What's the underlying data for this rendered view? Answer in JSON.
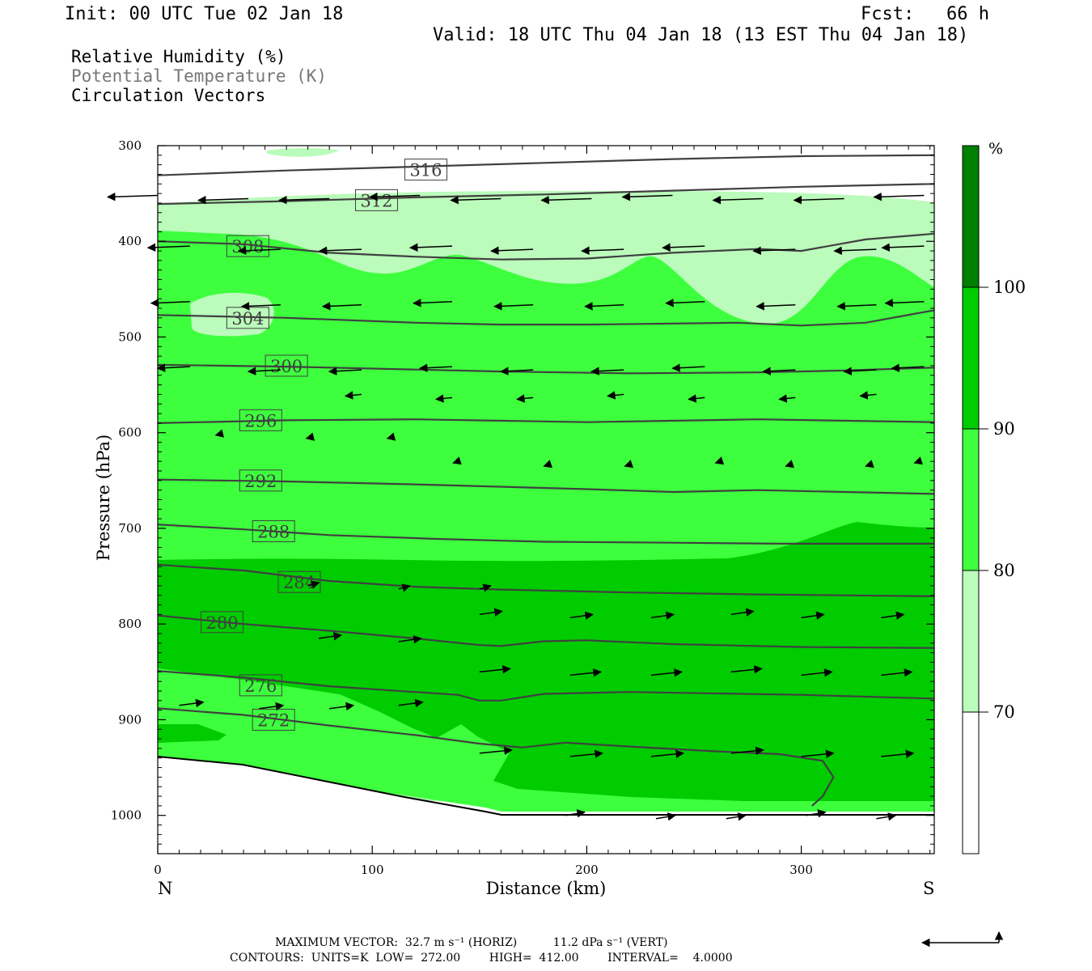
{
  "header": {
    "init": "Init: 00 UTC Tue 02 Jan 18",
    "fcst": "Fcst:   66 h",
    "valid": "Valid: 18 UTC Thu 04 Jan 18 (13 EST Thu 04 Jan 18)"
  },
  "fields": [
    {
      "label": "Relative Humidity (%)",
      "color": "#000000"
    },
    {
      "label": "Potential Temperature (K)",
      "color": "#777777"
    },
    {
      "label": "Circulation Vectors",
      "color": "#000000"
    }
  ],
  "chart_data": {
    "type": "cross-section",
    "xlabel": "Distance (km)",
    "ylabel": "Pressure (hPa)",
    "xlim": [
      0,
      362
    ],
    "ylim": [
      1040,
      300
    ],
    "x_ticks": [
      "0",
      "100",
      "200",
      "300"
    ],
    "y_ticks": [
      "300",
      "400",
      "500",
      "600",
      "700",
      "800",
      "900",
      "1000"
    ],
    "left_end_label": "N",
    "right_end_label": "S",
    "rh_colorbar": {
      "unit": "%",
      "levels": [
        "70",
        "80",
        "90",
        "100"
      ],
      "colors": [
        "#ffffff",
        "#bbfbbb",
        "#3dff3d",
        "#00cc00",
        "#008000"
      ]
    },
    "theta_contours": [
      {
        "value": 316,
        "label_at": [
          125,
          325
        ],
        "points": [
          [
            0,
            331
          ],
          [
            60,
            326
          ],
          [
            120,
            322
          ],
          [
            180,
            318
          ],
          [
            240,
            314
          ],
          [
            300,
            311
          ],
          [
            362,
            310
          ]
        ]
      },
      {
        "value": 312,
        "label_at": [
          102,
          357
        ],
        "points": [
          [
            0,
            361
          ],
          [
            60,
            358
          ],
          [
            120,
            354
          ],
          [
            180,
            351
          ],
          [
            240,
            347
          ],
          [
            300,
            343
          ],
          [
            362,
            340
          ]
        ]
      },
      {
        "value": 308,
        "label_at": [
          42,
          405
        ],
        "points": [
          [
            0,
            400
          ],
          [
            40,
            403
          ],
          [
            80,
            412
          ],
          [
            120,
            416
          ],
          [
            160,
            419
          ],
          [
            200,
            418
          ],
          [
            240,
            412
          ],
          [
            280,
            408
          ],
          [
            300,
            410
          ],
          [
            330,
            398
          ],
          [
            362,
            392
          ]
        ]
      },
      {
        "value": 304,
        "label_at": [
          42,
          480
        ],
        "points": [
          [
            0,
            477
          ],
          [
            60,
            480
          ],
          [
            120,
            485
          ],
          [
            160,
            487
          ],
          [
            200,
            487
          ],
          [
            240,
            486
          ],
          [
            270,
            485
          ],
          [
            300,
            488
          ],
          [
            330,
            485
          ],
          [
            362,
            472
          ]
        ]
      },
      {
        "value": 300,
        "label_at": [
          60,
          530
        ],
        "points": [
          [
            0,
            529
          ],
          [
            60,
            531
          ],
          [
            120,
            534
          ],
          [
            160,
            536
          ],
          [
            220,
            538
          ],
          [
            280,
            537
          ],
          [
            320,
            535
          ],
          [
            362,
            532
          ]
        ]
      },
      {
        "value": 296,
        "label_at": [
          48,
          587
        ],
        "points": [
          [
            0,
            590
          ],
          [
            60,
            587
          ],
          [
            120,
            586
          ],
          [
            200,
            589
          ],
          [
            280,
            586
          ],
          [
            362,
            589
          ]
        ]
      },
      {
        "value": 292,
        "label_at": [
          48,
          650
        ],
        "points": [
          [
            0,
            649
          ],
          [
            60,
            651
          ],
          [
            120,
            654
          ],
          [
            200,
            659
          ],
          [
            240,
            662
          ],
          [
            280,
            660
          ],
          [
            362,
            664
          ]
        ]
      },
      {
        "value": 288,
        "label_at": [
          54,
          703
        ],
        "points": [
          [
            0,
            696
          ],
          [
            40,
            701
          ],
          [
            80,
            707
          ],
          [
            130,
            711
          ],
          [
            180,
            714
          ],
          [
            240,
            715
          ],
          [
            290,
            716
          ],
          [
            362,
            716
          ]
        ]
      },
      {
        "value": 284,
        "label_at": [
          66,
          756
        ],
        "points": [
          [
            0,
            738
          ],
          [
            40,
            744
          ],
          [
            80,
            755
          ],
          [
            120,
            761
          ],
          [
            160,
            764
          ],
          [
            220,
            767
          ],
          [
            280,
            769
          ],
          [
            362,
            771
          ]
        ]
      },
      {
        "value": 280,
        "label_at": [
          30,
          798
        ],
        "points": [
          [
            0,
            791
          ],
          [
            40,
            800
          ],
          [
            80,
            807
          ],
          [
            120,
            815
          ],
          [
            150,
            822
          ],
          [
            160,
            823
          ],
          [
            180,
            818
          ],
          [
            200,
            817
          ],
          [
            240,
            821
          ],
          [
            300,
            824
          ],
          [
            362,
            825
          ]
        ]
      },
      {
        "value": 276,
        "label_at": [
          48,
          864
        ],
        "points": [
          [
            0,
            849
          ],
          [
            40,
            856
          ],
          [
            80,
            865
          ],
          [
            120,
            871
          ],
          [
            140,
            874
          ],
          [
            150,
            880
          ],
          [
            160,
            880
          ],
          [
            180,
            873
          ],
          [
            220,
            871
          ],
          [
            300,
            874
          ],
          [
            362,
            878
          ]
        ]
      },
      {
        "value": 272,
        "label_at": [
          54,
          900
        ],
        "points": [
          [
            0,
            888
          ],
          [
            40,
            895
          ],
          [
            80,
            906
          ],
          [
            120,
            916
          ],
          [
            150,
            925
          ],
          [
            170,
            929
          ],
          [
            190,
            924
          ],
          [
            220,
            928
          ],
          [
            260,
            933
          ],
          [
            290,
            936
          ],
          [
            310,
            943
          ],
          [
            315,
            960
          ],
          [
            310,
            980
          ],
          [
            305,
            990
          ]
        ]
      }
    ],
    "footer_vector_line": "MAXIMUM VECTOR:  32.7 m s⁻¹ (HORIZ)          11.2 dPa s⁻¹ (VERT)",
    "footer_contour_line": "CONTOURS:  UNITS=K  LOW=  272.00        HIGH=  412.00        INTERVAL=    4.0000"
  }
}
